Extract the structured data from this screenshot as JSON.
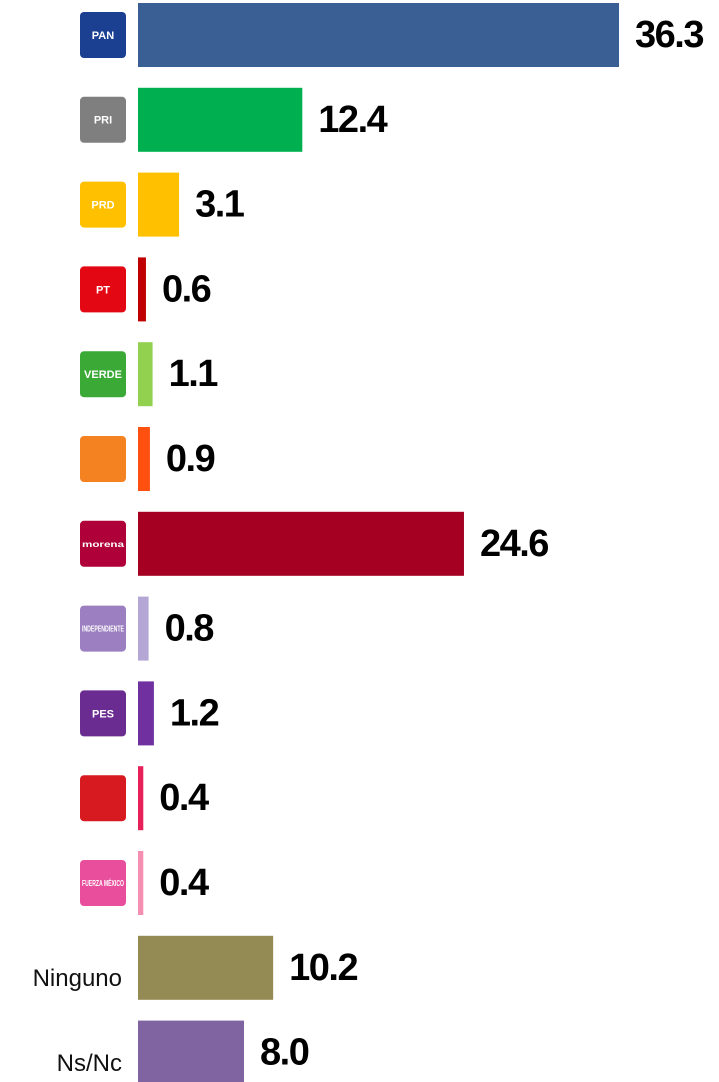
{
  "chart_data": {
    "type": "bar",
    "orientation": "horizontal",
    "categories": [
      "PAN",
      "PRI",
      "PRD",
      "PT",
      "VERDE",
      null,
      "morena",
      "INDEPENDIENTE",
      "PES",
      null,
      "FUERZA MÉXICO",
      "Ninguno",
      "Ns/Nc"
    ],
    "values": [
      36.3,
      12.4,
      3.1,
      0.6,
      1.1,
      0.9,
      24.6,
      0.8,
      1.2,
      0.4,
      0.4,
      10.2,
      8.0
    ],
    "value_labels": [
      "36.3",
      "12.4",
      "3.1",
      "0.6",
      "1.1",
      "0.9",
      "24.6",
      "0.8",
      "1.2",
      "0.4",
      "0.4",
      "10.2",
      "8.0"
    ],
    "colors": [
      "#3a5f94",
      "#00b050",
      "#ffc000",
      "#c00000",
      "#92d050",
      "#ff5010",
      "#a50021",
      "#b4a7d6",
      "#7030a0",
      "#e8205a",
      "#f48fb1",
      "#948a54",
      "#8064a2"
    ],
    "logo_colors": [
      "#1b3f91",
      "#7f7f7f",
      "#ffc000",
      "#e30613",
      "#3aa935",
      "#f58220",
      "#b0003a",
      "#9b7fc0",
      "#6a2c91",
      "#d71920",
      "#e94e9c",
      null,
      null
    ]
  }
}
